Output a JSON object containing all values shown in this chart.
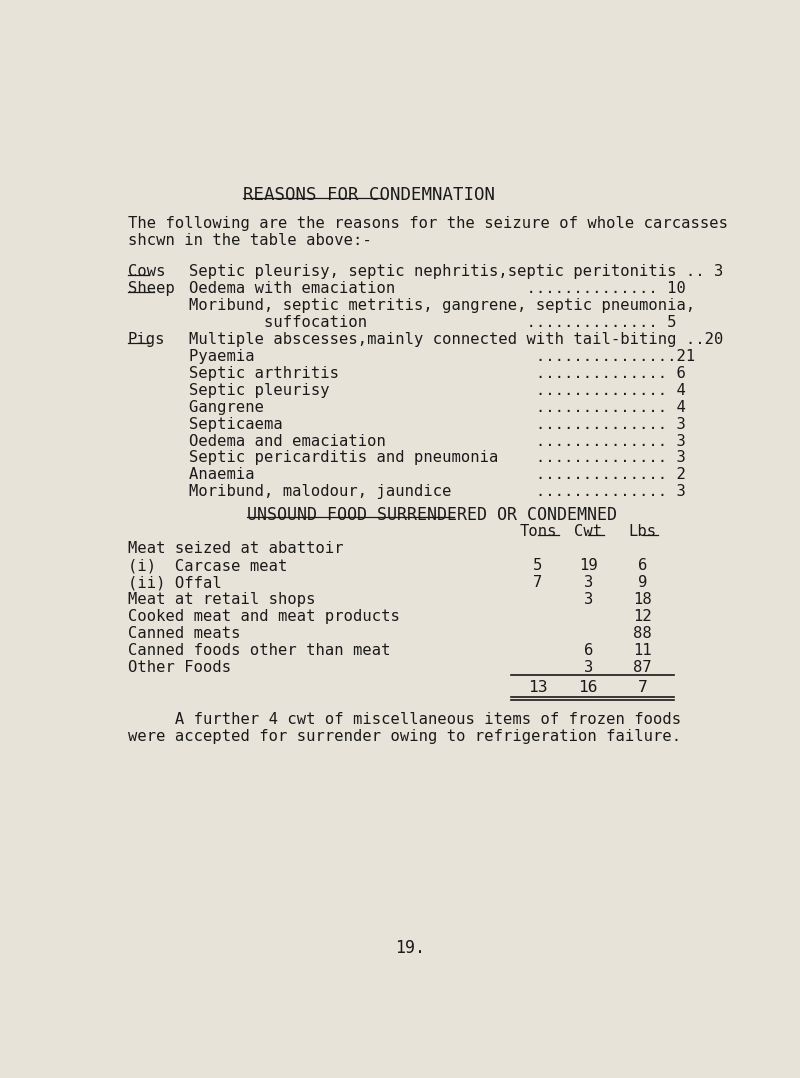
{
  "bg_color": "#e8e3d8",
  "text_color": "#1a1a1a",
  "title": "REASONS FOR CONDEMNATION",
  "intro_line1": "The following are the reasons for the seizure of whole carcasses",
  "intro_line2": "shcwn in the table above:-",
  "cows_label": "Cows",
  "cows_entry": "Septic pleurisy, septic nephritis,septic peritonitis .. 3",
  "sheep_label": "Sheep",
  "sheep_entries": [
    "Oedema with emaciation              .............. 10",
    "Moribund, septic metritis, gangrene, septic pneumonia,",
    "        suffocation                 .............. 5"
  ],
  "pigs_label": "Pigs",
  "pigs_entries": [
    "Multiple abscesses,mainly connected with tail-biting ..20",
    "Pyaemia                              ...............21",
    "Septic arthritis                     .............. 6",
    "Septic pleurisy                      .............. 4",
    "Gangrene                             .............. 4",
    "Septicaema                           .............. 3",
    "Oedema and emaciation                .............. 3",
    "Septic pericarditis and pneumonia    .............. 3",
    "Anaemia                              .............. 2",
    "Moribund, malodour, jaundice         .............. 3"
  ],
  "unsound_title": "UNSOUND FOOD SURRENDERED OR CONDEMNED",
  "col_headers": [
    "Tons",
    "Cwt",
    "Lbs"
  ],
  "table_rows": [
    {
      "label": "Meat seized at abattoir",
      "tons": "",
      "cwt": "",
      "lbs": ""
    },
    {
      "label": "(i)  Carcase meat",
      "tons": "5",
      "cwt": "19",
      "lbs": "6"
    },
    {
      "label": "(ii) Offal",
      "tons": "7",
      "cwt": "3",
      "lbs": "9"
    },
    {
      "label": "Meat at retail shops",
      "tons": "",
      "cwt": "3",
      "lbs": "18"
    },
    {
      "label": "Cooked meat and meat products",
      "tons": "",
      "cwt": "",
      "lbs": "12"
    },
    {
      "label": "Canned meats",
      "tons": "",
      "cwt": "",
      "lbs": "88"
    },
    {
      "label": "Canned foods other than meat",
      "tons": "",
      "cwt": "6",
      "lbs": "11"
    },
    {
      "label": "Other Foods",
      "tons": "",
      "cwt": "3",
      "lbs": "87"
    }
  ],
  "table_total": {
    "tons": "13",
    "cwt": "16",
    "lbs": "7"
  },
  "footer1": "     A further 4 cwt of miscellaneous items of frozen foods",
  "footer2": "were accepted for surrender owing to refrigeration failure.",
  "page_number": "19."
}
